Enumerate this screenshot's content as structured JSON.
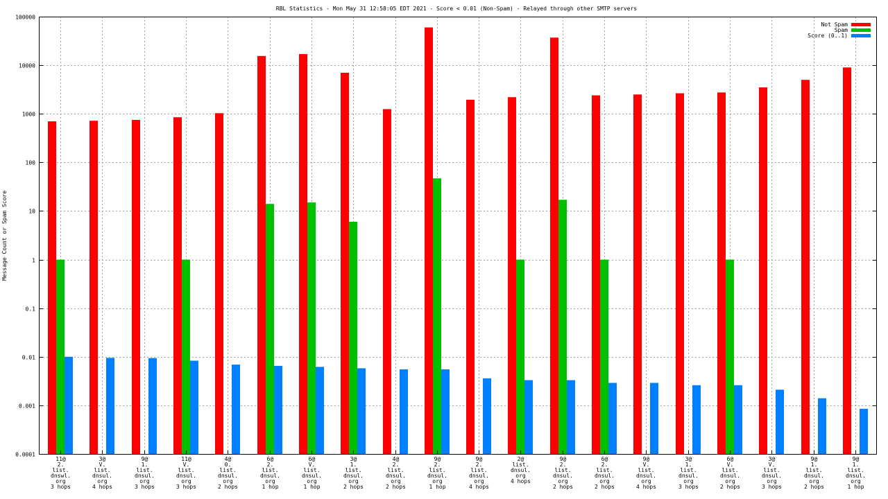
{
  "chart_data": {
    "type": "bar",
    "title": "RBL Statistics - Mon May 31 12:58:05 EDT 2021 - Score < 0.01 (Non-Spam) - Relayed through other SMTP servers",
    "xlabel": "",
    "ylabel": "Message Count or Spam Score",
    "yscale": "log",
    "ylim": [
      0.0001,
      100000
    ],
    "y_tick_labels": [
      "100000",
      "10000",
      "1000",
      "100",
      "10",
      "1",
      "0.1",
      "0.01",
      "0.001",
      "0.0001"
    ],
    "grid": true,
    "legend_position": "top-right",
    "categories": [
      [
        "11@",
        "2.",
        "list.",
        "dnswl.",
        "org",
        "3 hops"
      ],
      [
        "3@",
        "V.",
        "list.",
        "dnsul.",
        "org",
        "4 hops"
      ],
      [
        "9@",
        "1.",
        "list.",
        "dnsul.",
        "org",
        "3 hops"
      ],
      [
        "11@",
        "V.",
        "list.",
        "dnsul.",
        "org",
        "3 hops"
      ],
      [
        "4@",
        "0.",
        "list.",
        "dnsul.",
        "org",
        "2 hops"
      ],
      [
        "6@",
        "2.",
        "list.",
        "dnsul.",
        "org",
        "1 hop"
      ],
      [
        "6@",
        "V.",
        "list.",
        "dnsul.",
        "org",
        "1 hop"
      ],
      [
        "3@",
        "1.",
        "list.",
        "dnsul.",
        "org",
        "2 hops"
      ],
      [
        "4@",
        "2.",
        "list.",
        "dnsul.",
        "org",
        "2 hops"
      ],
      [
        "9@",
        "2.",
        "list.",
        "dnsul.",
        "org",
        "1 hop"
      ],
      [
        "9@",
        "2.",
        "list.",
        "dnsul.",
        "org",
        "4 hops"
      ],
      [
        "2@",
        "list.",
        "dnsul.",
        "org",
        "4 hops"
      ],
      [
        "9@",
        "2.",
        "list.",
        "dnsul.",
        "org",
        "2 hops"
      ],
      [
        "6@",
        "2.",
        "list.",
        "dnsul.",
        "org",
        "2 hops"
      ],
      [
        "9@",
        "V.",
        "list.",
        "dnsul.",
        "org",
        "4 hops"
      ],
      [
        "3@",
        "1.",
        "list.",
        "dnsul.",
        "org",
        "3 hops"
      ],
      [
        "6@",
        "V.",
        "list.",
        "dnsul.",
        "org",
        "2 hops"
      ],
      [
        "3@",
        "V.",
        "list.",
        "dnsul.",
        "org",
        "3 hops"
      ],
      [
        "9@",
        "1.",
        "list.",
        "dnsul.",
        "org",
        "2 hops"
      ],
      [
        "9@",
        "1.",
        "list.",
        "dnsul.",
        "org",
        "1 hop"
      ]
    ],
    "series": [
      {
        "name": "Not Spam",
        "color": "#ff0000",
        "values": [
          700,
          720,
          750,
          850,
          1030,
          15500,
          17000,
          7000,
          1250,
          60000,
          1950,
          2200,
          37000,
          2400,
          2500,
          2650,
          2750,
          3500,
          5000,
          9000
        ]
      },
      {
        "name": "Spam",
        "color": "#00c000",
        "values": [
          1,
          null,
          null,
          1,
          null,
          14,
          15,
          6,
          null,
          47,
          null,
          1,
          17,
          1,
          null,
          null,
          1,
          null,
          null,
          null
        ]
      },
      {
        "name": "Score (0..1)",
        "color": "#0080ff",
        "values": [
          0.01,
          0.0095,
          0.0094,
          0.0083,
          0.0069,
          0.0065,
          0.0062,
          0.0058,
          0.0055,
          0.0055,
          0.0036,
          0.0033,
          0.0033,
          0.0029,
          0.0029,
          0.0026,
          0.0026,
          0.0021,
          0.0014,
          0.00085
        ]
      }
    ]
  }
}
